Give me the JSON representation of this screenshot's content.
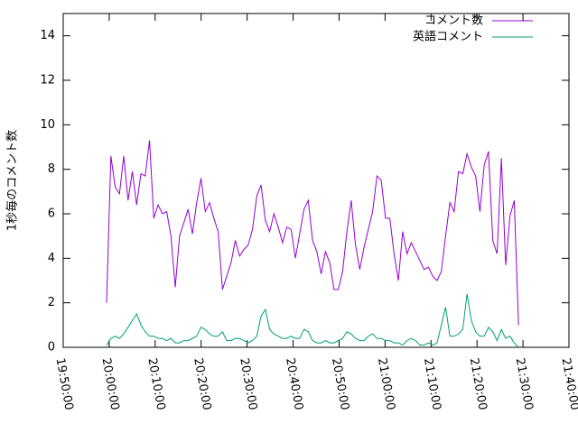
{
  "chart_data": {
    "type": "line",
    "ylabel": "1秒毎のコメント数",
    "x": [
      71966,
      72022,
      72078,
      72134,
      72190,
      72246,
      72302,
      72358,
      72414,
      72470,
      72526,
      72582,
      72638,
      72694,
      72750,
      72806,
      72862,
      72918,
      72974,
      73030,
      73086,
      73142,
      73198,
      73254,
      73310,
      73366,
      73422,
      73478,
      73534,
      73590,
      73646,
      73702,
      73758,
      73814,
      73870,
      73926,
      73982,
      74038,
      74094,
      74150,
      74206,
      74262,
      74318,
      74374,
      74430,
      74486,
      74542,
      74598,
      74654,
      74710,
      74766,
      74822,
      74878,
      74934,
      74990,
      75046,
      75102,
      75158,
      75214,
      75270,
      75326,
      75382,
      75438,
      75494,
      75550,
      75606,
      75662,
      75718,
      75774,
      75830,
      75886,
      75942,
      75998,
      76054,
      76110,
      76166,
      76222,
      76278,
      76334,
      76390,
      76446,
      76502,
      76558,
      76614,
      76670,
      76726,
      76782,
      76838,
      76894,
      76950,
      77006,
      77062,
      77118,
      77174,
      77230,
      77286,
      77342
    ],
    "series": [
      {
        "name": "コメント数",
        "color": "#9400d3",
        "values": [
          2.0,
          8.6,
          7.2,
          6.9,
          8.6,
          6.6,
          7.9,
          6.4,
          7.8,
          7.7,
          9.3,
          5.8,
          6.4,
          6.0,
          6.1,
          5.0,
          2.7,
          5.0,
          5.6,
          6.2,
          5.1,
          6.5,
          7.6,
          6.1,
          6.5,
          5.8,
          5.2,
          2.6,
          3.2,
          3.8,
          4.8,
          4.1,
          4.4,
          4.6,
          5.3,
          6.8,
          7.3,
          5.7,
          5.2,
          6.0,
          5.4,
          4.7,
          5.4,
          5.3,
          4.0,
          5.1,
          6.2,
          6.6,
          4.8,
          4.3,
          3.3,
          4.3,
          3.8,
          2.6,
          2.6,
          3.4,
          5.2,
          6.6,
          4.6,
          3.5,
          4.5,
          5.3,
          6.1,
          7.7,
          7.5,
          5.8,
          5.8,
          4.2,
          3.0,
          5.2,
          4.2,
          4.7,
          4.3,
          3.9,
          3.5,
          3.6,
          3.2,
          3.0,
          3.4,
          5.0,
          6.5,
          6.1,
          7.9,
          7.8,
          8.7,
          8.1,
          7.7,
          6.1,
          8.2,
          8.8,
          4.8,
          4.2,
          8.5,
          3.7,
          5.9,
          6.6,
          1.0
        ]
      },
      {
        "name": "英語コメント",
        "color": "#009e73",
        "values": [
          0.1,
          0.4,
          0.5,
          0.4,
          0.6,
          0.9,
          1.2,
          1.5,
          1.0,
          0.7,
          0.5,
          0.5,
          0.4,
          0.4,
          0.3,
          0.4,
          0.2,
          0.2,
          0.3,
          0.3,
          0.4,
          0.5,
          0.9,
          0.8,
          0.6,
          0.5,
          0.5,
          0.7,
          0.3,
          0.3,
          0.4,
          0.4,
          0.3,
          0.2,
          0.3,
          0.5,
          1.4,
          1.7,
          0.8,
          0.6,
          0.5,
          0.4,
          0.4,
          0.5,
          0.4,
          0.4,
          0.8,
          0.7,
          0.3,
          0.2,
          0.2,
          0.3,
          0.2,
          0.2,
          0.3,
          0.4,
          0.7,
          0.6,
          0.4,
          0.3,
          0.3,
          0.5,
          0.6,
          0.4,
          0.4,
          0.3,
          0.3,
          0.2,
          0.2,
          0.1,
          0.3,
          0.4,
          0.3,
          0.1,
          0.1,
          0.2,
          0.1,
          0.2,
          1.0,
          1.8,
          0.5,
          0.5,
          0.6,
          0.8,
          2.4,
          1.2,
          0.7,
          0.5,
          0.5,
          0.9,
          0.7,
          0.3,
          0.8,
          0.4,
          0.5,
          0.2,
          0.0
        ]
      }
    ],
    "xlim": [
      71400,
      78000
    ],
    "xticks": [
      {
        "value": 71400,
        "label": "19:50:00"
      },
      {
        "value": 72000,
        "label": "20:00:00"
      },
      {
        "value": 72600,
        "label": "20:10:00"
      },
      {
        "value": 73200,
        "label": "20:20:00"
      },
      {
        "value": 73800,
        "label": "20:30:00"
      },
      {
        "value": 74400,
        "label": "20:40:00"
      },
      {
        "value": 75000,
        "label": "20:50:00"
      },
      {
        "value": 75600,
        "label": "21:00:00"
      },
      {
        "value": 76200,
        "label": "21:10:00"
      },
      {
        "value": 76800,
        "label": "21:20:00"
      },
      {
        "value": 77400,
        "label": "21:30:00"
      },
      {
        "value": 78000,
        "label": "21:40:00"
      }
    ],
    "ylim": [
      0,
      15
    ],
    "yticks": [
      0,
      2,
      4,
      6,
      8,
      10,
      12,
      14
    ],
    "legend": "top-right"
  }
}
